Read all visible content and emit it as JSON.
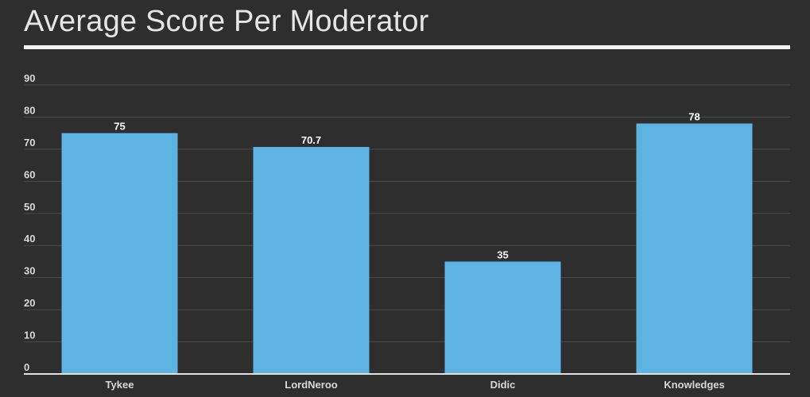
{
  "chart_data": {
    "type": "bar",
    "title": "Average Score Per Moderator",
    "categories": [
      "Tykee",
      "LordNeroo",
      "Didic",
      "Knowledges"
    ],
    "values": [
      75,
      70.7,
      35,
      78
    ],
    "data_labels": [
      "75",
      "70.7",
      "35",
      "78"
    ],
    "ylim": [
      0,
      90
    ],
    "yticks": [
      0,
      10,
      20,
      30,
      40,
      50,
      60,
      70,
      80,
      90
    ],
    "xlabel": "",
    "ylabel": "",
    "grid": true,
    "bar_color": "#5db4e3",
    "background_color": "#2e2e2e"
  }
}
